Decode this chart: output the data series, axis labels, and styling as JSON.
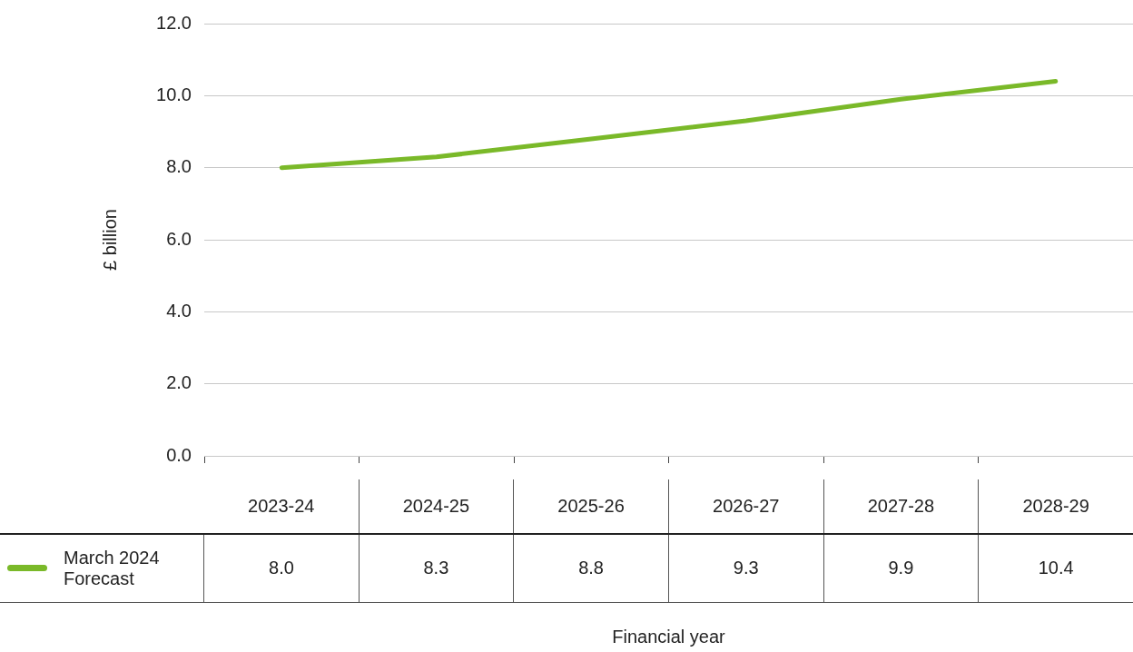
{
  "chart_data": {
    "type": "line",
    "categories": [
      "2023-24",
      "2024-25",
      "2025-26",
      "2026-27",
      "2027-28",
      "2028-29"
    ],
    "series": [
      {
        "name": "March 2024 Forecast",
        "color": "#7ab929",
        "values": [
          8.0,
          8.3,
          8.8,
          9.3,
          9.9,
          10.4
        ],
        "value_labels": [
          "8.0",
          "8.3",
          "8.8",
          "9.3",
          "9.9",
          "10.4"
        ]
      }
    ],
    "annotations": [
      "Financial year"
    ],
    "ylabel": "£ billion",
    "ylim": [
      0,
      12
    ],
    "yticks": [
      {
        "value": 0,
        "label": "0.0"
      },
      {
        "value": 2,
        "label": "2.0"
      },
      {
        "value": 4,
        "label": "4.0"
      },
      {
        "value": 6,
        "label": "6.0"
      },
      {
        "value": 8,
        "label": "8.0"
      },
      {
        "value": 10,
        "label": "10.0"
      },
      {
        "value": 12,
        "label": "12.0"
      }
    ],
    "grid": "y",
    "legend": "bottom",
    "marker": "none"
  }
}
